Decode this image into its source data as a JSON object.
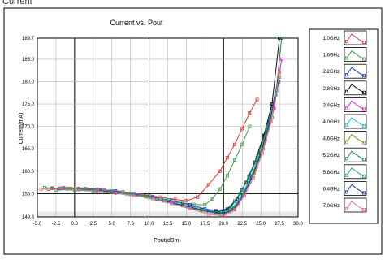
{
  "header": {
    "partial_label": "Current"
  },
  "chart_data": {
    "type": "line",
    "title": "Current vs. Pout",
    "xlabel": "Pout(dBm)",
    "ylabel": "Current(mA)",
    "xlim": [
      -5.0,
      30.0
    ],
    "ylim": [
      149.8,
      189.7
    ],
    "x_ticks": [
      "-5.0",
      "-2.5",
      "0.0",
      "2.5",
      "5.0",
      "7.5",
      "10.0",
      "12.5",
      "15.0",
      "17.5",
      "20.0",
      "22.5",
      "25.0",
      "27.5",
      "30.0"
    ],
    "y_ticks": [
      {
        "value": 189.7,
        "label": "189.7"
      },
      {
        "value": 185.0,
        "label": "185.0"
      },
      {
        "value": 180.0,
        "label": "180.0"
      },
      {
        "value": 175.0,
        "label": "175.0"
      },
      {
        "value": 170.0,
        "label": "170.0"
      },
      {
        "value": 165.0,
        "label": "165.0"
      },
      {
        "value": 160.0,
        "label": "160.0"
      },
      {
        "value": 155.0,
        "label": "155.0"
      },
      {
        "value": 149.8,
        "label": "149.8"
      }
    ],
    "grid": true,
    "legend_position": "right",
    "series": [
      {
        "name": "1.0GHz",
        "color": "#e53935",
        "x": [
          -3.5,
          -1,
          1.5,
          4,
          6.5,
          9,
          11.5,
          13.5,
          15,
          16.5,
          18,
          19.5,
          20.5,
          21.5,
          22.5,
          23.5,
          24.5
        ],
        "y": [
          156.0,
          156.2,
          156.1,
          155.8,
          155.4,
          154.8,
          154.2,
          153.7,
          153.4,
          154.2,
          157.0,
          160.0,
          163.0,
          166.0,
          169.5,
          173.0,
          176.0
        ]
      },
      {
        "name": "1.6GHz",
        "color": "#43a047",
        "x": [
          -2.5,
          0,
          2.5,
          5,
          7.5,
          10,
          12.5,
          14.5,
          16,
          17.5,
          18.5,
          19.5,
          20.5,
          21.5,
          22.5,
          23.5
        ],
        "y": [
          155.8,
          155.9,
          155.8,
          155.6,
          155.1,
          154.5,
          153.6,
          152.9,
          152.6,
          152.5,
          153.8,
          156.0,
          159.0,
          162.5,
          166.0,
          170.0
        ]
      },
      {
        "name": "2.2GHz",
        "color": "#1e3fd8",
        "x": [
          -2,
          0.5,
          3,
          5.5,
          8,
          10.5,
          13,
          15.5,
          17.5,
          19,
          20.5,
          21.5,
          22.5,
          23.5,
          24.5,
          25.5,
          26.5,
          27.5
        ],
        "y": [
          156.2,
          156.1,
          155.9,
          155.6,
          155.0,
          154.3,
          153.4,
          152.5,
          151.6,
          151.2,
          151.6,
          153.3,
          155.8,
          159.0,
          163.0,
          168.0,
          174.0,
          182.0
        ]
      },
      {
        "name": "2.8GHz",
        "color": "#111111",
        "x": [
          -3,
          -0.5,
          2,
          4.5,
          7,
          9.5,
          12,
          14.5,
          17,
          19,
          20.5,
          21.8,
          23,
          24.2,
          25.4,
          26.5,
          27.5
        ],
        "y": [
          156.2,
          156.1,
          155.9,
          155.5,
          155.0,
          154.4,
          153.4,
          152.4,
          151.4,
          150.9,
          151.4,
          153.8,
          157.5,
          162.0,
          168.0,
          175.0,
          189.7
        ]
      },
      {
        "name": "3.4GHz",
        "color": "#e020e0",
        "x": [
          -1.5,
          1,
          3.5,
          6,
          8.5,
          11,
          13.5,
          16,
          18,
          19.5,
          20.8,
          22,
          23.2,
          24.4,
          25.6,
          26.8,
          27.8
        ],
        "y": [
          156.3,
          156.0,
          155.8,
          155.3,
          154.7,
          153.8,
          152.8,
          151.8,
          151.0,
          150.6,
          151.0,
          152.8,
          156.5,
          161.0,
          167.0,
          174.0,
          185.0
        ]
      },
      {
        "name": "4.0GHz",
        "color": "#19c3d4",
        "x": [
          -1,
          1.5,
          4,
          6.5,
          9,
          11.5,
          14,
          16.5,
          18.5,
          20,
          21.2,
          22.4,
          23.6,
          24.8,
          26,
          27.2
        ],
        "y": [
          156.0,
          155.9,
          155.6,
          155.1,
          154.5,
          153.6,
          152.6,
          151.6,
          150.9,
          150.7,
          151.8,
          154.5,
          158.5,
          163.5,
          170.0,
          178.0
        ]
      },
      {
        "name": "4.6GHz",
        "color": "#8a8a10",
        "x": [
          -0.5,
          2,
          4.5,
          7,
          9.5,
          12,
          14.5,
          17,
          19,
          20.5,
          21.7,
          22.9,
          24.1,
          25.3,
          26.5,
          27.5
        ],
        "y": [
          156.1,
          155.9,
          155.5,
          155.0,
          154.3,
          153.4,
          152.3,
          151.3,
          150.7,
          150.8,
          152.4,
          155.5,
          159.5,
          165.0,
          172.0,
          181.0
        ]
      },
      {
        "name": "5.2GHz",
        "color": "#1a8a4a",
        "x": [
          -4,
          -1.5,
          1,
          3.5,
          6,
          8.5,
          11,
          13.5,
          16,
          18,
          19.8,
          21,
          22.2,
          23.4,
          24.6,
          25.8,
          27,
          27.8
        ],
        "y": [
          156.3,
          156.2,
          156.0,
          155.7,
          155.2,
          154.6,
          153.8,
          152.8,
          151.8,
          151.0,
          150.8,
          152.0,
          155.0,
          158.8,
          163.5,
          169.5,
          177.0,
          189.7
        ]
      },
      {
        "name": "5.8GHz",
        "color": "#20b060",
        "x": [
          0,
          2.5,
          5,
          7.5,
          10,
          12.5,
          15,
          17.5,
          19.5,
          21,
          22.2,
          23.4,
          24.6,
          25.8,
          27
        ],
        "y": [
          155.8,
          155.6,
          155.3,
          154.8,
          154.1,
          153.2,
          152.2,
          151.2,
          150.6,
          151.2,
          153.6,
          157.5,
          162.5,
          169.0,
          177.0
        ]
      },
      {
        "name": "6.4GHz",
        "color": "#2038b0",
        "x": [
          0.5,
          3,
          5.5,
          8,
          10.5,
          13,
          15.5,
          18,
          20,
          21.4,
          22.6,
          23.8,
          25,
          26.2,
          27.4
        ],
        "y": [
          155.9,
          155.7,
          155.2,
          154.6,
          153.9,
          153.0,
          152.0,
          151.0,
          150.5,
          151.5,
          154.5,
          158.5,
          164.0,
          171.0,
          180.0
        ]
      },
      {
        "name": "7.0GHz",
        "color": "#f07080",
        "x": [
          -4.5,
          -2,
          0.5,
          3,
          5.5,
          8,
          10.5,
          13,
          15.5,
          18,
          20,
          21.5,
          22.8,
          24,
          25.2,
          26.4,
          27.5
        ],
        "y": [
          156.0,
          156.0,
          155.9,
          155.6,
          155.1,
          154.6,
          153.9,
          152.8,
          151.6,
          150.4,
          150.0,
          151.4,
          154.5,
          158.5,
          164.0,
          171.0,
          182.0
        ]
      }
    ]
  }
}
